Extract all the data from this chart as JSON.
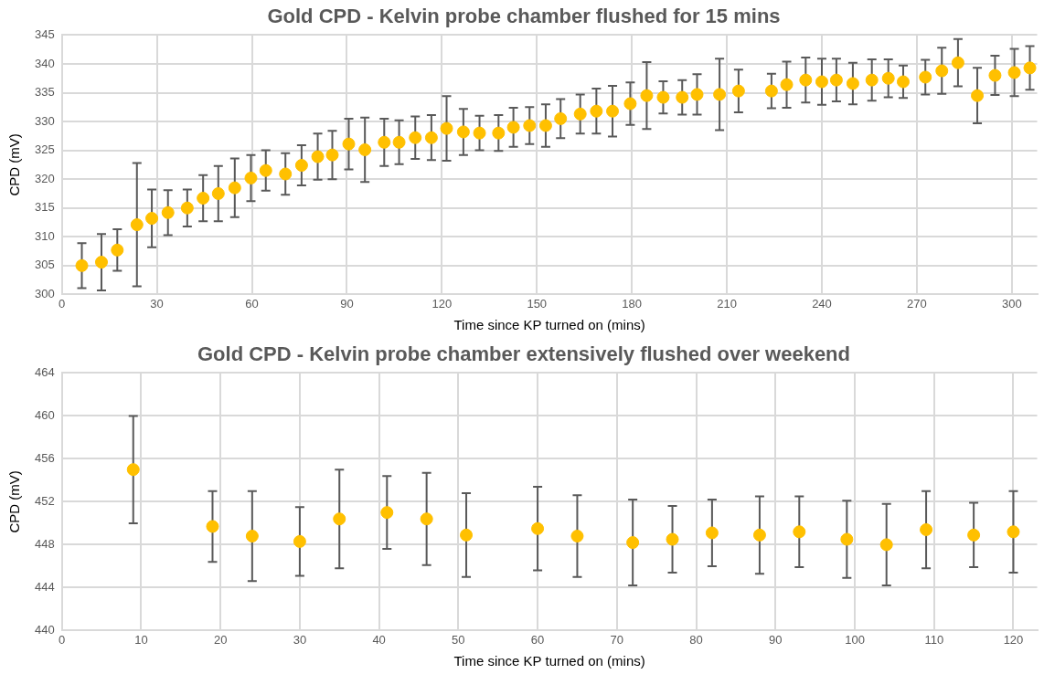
{
  "chart_data": [
    {
      "type": "scatter",
      "title": "Gold CPD - Kelvin probe chamber flushed for 15 mins",
      "xlabel": "Time since KP turned on (mins)",
      "ylabel": "CPD (mV)",
      "color": "#ffc000",
      "marker": "circle",
      "grid": true,
      "x": [
        6.3,
        12.5,
        17.5,
        23.7,
        28.4,
        33.5,
        39.6,
        44.6,
        49.4,
        54.6,
        59.7,
        64.4,
        70.6,
        75.7,
        80.8,
        85.4,
        90.6,
        95.7,
        101.8,
        106.5,
        111.6,
        116.7,
        121.5,
        126.8,
        131.9,
        137.9,
        142.6,
        147.7,
        152.8,
        157.5,
        163.7,
        168.8,
        173.9,
        179.5,
        184.7,
        189.9,
        195.9,
        200.6,
        207.7,
        213.7,
        224.1,
        228.9,
        234.9,
        240.0,
        244.6,
        249.8,
        255.8,
        261.0,
        265.7,
        272.7,
        277.9,
        283.0,
        289.1,
        294.7,
        300.8,
        305.7
      ],
      "values": [
        305.0,
        305.6,
        307.7,
        312.1,
        313.2,
        314.2,
        315.0,
        316.7,
        317.5,
        318.5,
        320.2,
        321.5,
        320.9,
        322.4,
        323.9,
        324.2,
        326.1,
        325.1,
        326.4,
        326.4,
        327.2,
        327.2,
        328.8,
        328.2,
        328.0,
        328.0,
        329.0,
        329.3,
        329.3,
        330.5,
        331.3,
        331.8,
        331.8,
        333.1,
        334.5,
        334.2,
        334.2,
        334.7,
        334.7,
        335.3,
        335.3,
        336.4,
        337.2,
        336.9,
        337.2,
        336.6,
        337.2,
        337.5,
        336.9,
        337.7,
        338.8,
        340.2,
        334.5,
        338.0,
        338.5,
        339.3
      ],
      "errors": [
        3.9,
        4.9,
        3.6,
        10.7,
        5,
        3.9,
        3.2,
        4,
        4.8,
        5.1,
        4,
        3.5,
        3.6,
        3.5,
        4,
        4.2,
        4.4,
        5.6,
        4.1,
        3.8,
        3.7,
        3.9,
        5.6,
        4,
        3,
        3.1,
        3.4,
        3.2,
        3.7,
        3.4,
        3.4,
        3.9,
        4.4,
        3.7,
        5.8,
        2.8,
        3,
        3.5,
        6.2,
        3.7,
        3,
        4,
        3.9,
        4,
        3.7,
        3.6,
        3.6,
        3.3,
        2.8,
        3,
        4,
        4.1,
        4.8,
        3.4,
        4.1,
        3.8
      ],
      "xlim": [
        0,
        308
      ],
      "xticks": [
        0,
        30,
        60,
        90,
        120,
        150,
        180,
        210,
        240,
        270,
        300
      ],
      "ylim": [
        300,
        345
      ],
      "yticks": [
        300,
        305,
        310,
        315,
        320,
        325,
        330,
        335,
        340,
        345
      ]
    },
    {
      "type": "scatter",
      "title": "Gold CPD - Kelvin probe chamber extensively flushed over weekend",
      "xlabel": "Time since KP turned on (mins)",
      "ylabel": "CPD (mV)",
      "color": "#ffc000",
      "marker": "circle",
      "grid": true,
      "x": [
        9,
        19,
        24,
        30,
        35,
        41,
        46,
        51,
        60,
        65,
        72,
        77,
        82,
        88,
        93,
        99,
        104,
        109,
        115,
        120
      ],
      "values": [
        455.0,
        449.7,
        448.8,
        448.3,
        450.4,
        451.0,
        450.4,
        448.9,
        449.5,
        448.8,
        448.2,
        448.5,
        449.1,
        448.9,
        449.2,
        448.5,
        448.0,
        449.4,
        448.9,
        449.2
      ],
      "errors": [
        5,
        3.3,
        4.2,
        3.2,
        4.6,
        3.4,
        4.3,
        3.9,
        3.9,
        3.8,
        4,
        3.1,
        3.1,
        3.6,
        3.3,
        3.6,
        3.8,
        3.6,
        3,
        3.8
      ],
      "xlim": [
        0,
        123
      ],
      "xticks": [
        0,
        10,
        20,
        30,
        40,
        50,
        60,
        70,
        80,
        90,
        100,
        110,
        120
      ],
      "ylim": [
        440,
        464
      ],
      "yticks": [
        440,
        444,
        448,
        452,
        456,
        460,
        464
      ]
    }
  ]
}
